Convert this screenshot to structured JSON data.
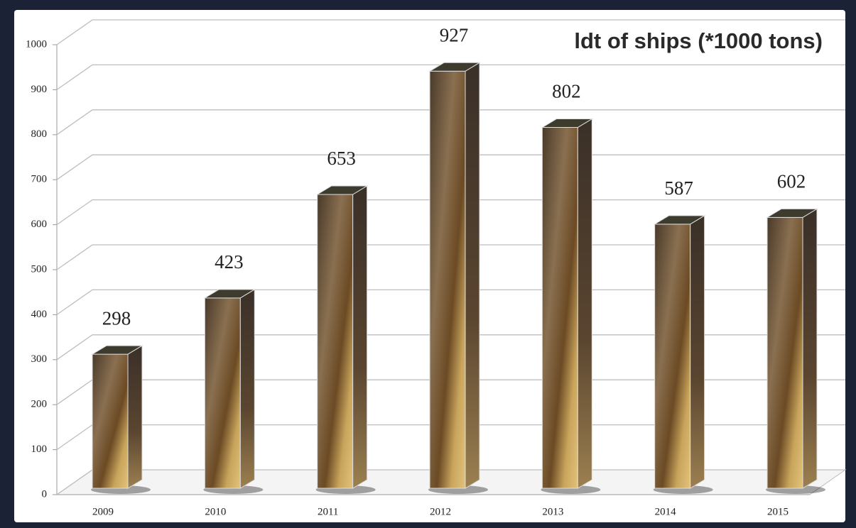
{
  "chart_data": {
    "type": "bar",
    "title": "ldt of ships (*1000 tons)",
    "categories": [
      "2009",
      "2010",
      "2011",
      "2012",
      "2013",
      "2014",
      "2015"
    ],
    "values": [
      298,
      423,
      653,
      927,
      802,
      587,
      602
    ],
    "ylim": [
      0,
      1000
    ],
    "yticks": [
      0,
      100,
      200,
      300,
      400,
      500,
      600,
      700,
      800,
      900,
      1000
    ],
    "grid": true
  }
}
